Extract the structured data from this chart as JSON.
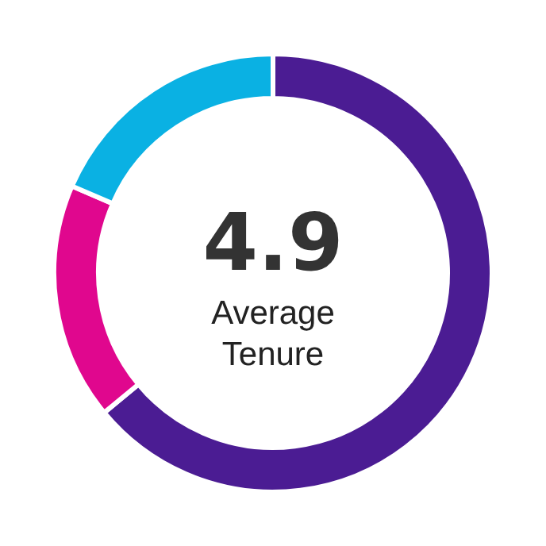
{
  "chart_data": {
    "type": "donut",
    "categories": [
      null,
      null,
      null
    ],
    "values": [
      64,
      17.5,
      18.5
    ],
    "colors": [
      "#4b1c93",
      "#e0078e",
      "#0ab1e3"
    ],
    "annotations": [
      "4.9",
      "Average Tenure"
    ]
  }
}
